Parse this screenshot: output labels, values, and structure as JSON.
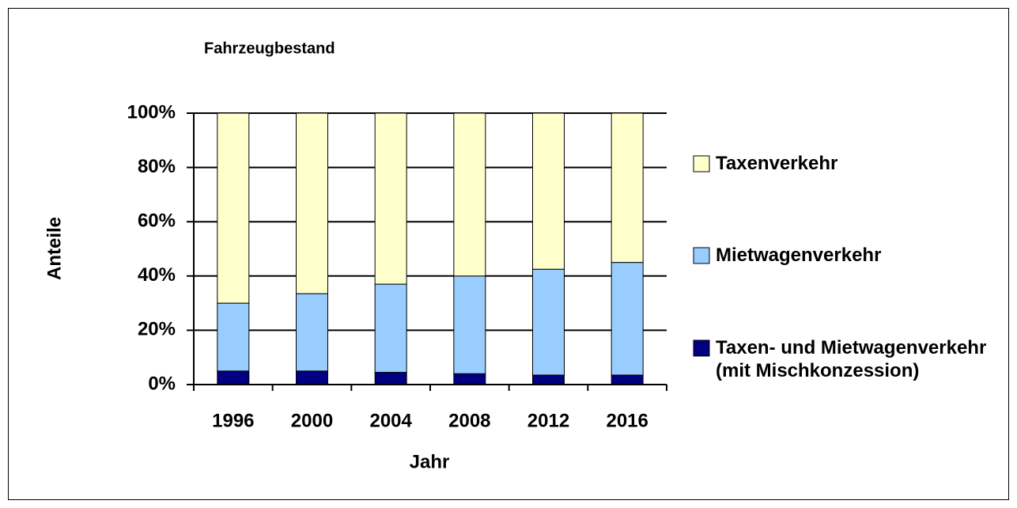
{
  "chart_data": {
    "type": "stacked_bar",
    "title": "Fahrzeugbestand",
    "x_label": "Jahr",
    "y_label": "Anteile",
    "categories": [
      "1996",
      "2000",
      "2004",
      "2008",
      "2012",
      "2016"
    ],
    "series": [
      {
        "name": "Taxen- und Mietwagenverkehr (mit Mischkonzession)",
        "color": "#000080",
        "values": [
          5,
          5,
          4.5,
          4,
          3.5,
          3.5
        ]
      },
      {
        "name": "Mietwagenverkehr",
        "color": "#99ccff",
        "values": [
          25,
          28.5,
          32.5,
          36,
          39,
          41.5
        ]
      },
      {
        "name": "Taxenverkehr",
        "color": "#ffffcc",
        "values": [
          70,
          66.5,
          63,
          60,
          57.5,
          55
        ]
      }
    ],
    "ylim": [
      0,
      100
    ],
    "yticks": [
      {
        "value": 0,
        "label": "0%"
      },
      {
        "value": 20,
        "label": "20%"
      },
      {
        "value": 40,
        "label": "40%"
      },
      {
        "value": 60,
        "label": "60%"
      },
      {
        "value": 80,
        "label": "80%"
      },
      {
        "value": 100,
        "label": "100%"
      }
    ],
    "grid": true,
    "legend": "right"
  }
}
